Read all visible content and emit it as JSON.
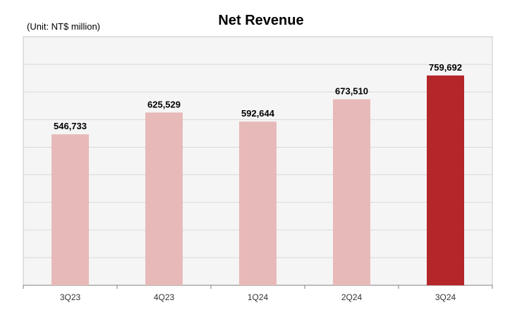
{
  "unit_note": "(Unit: NT$ million)",
  "chart_data": {
    "type": "bar",
    "title": "Net Revenue",
    "xlabel": "",
    "ylabel": "",
    "categories": [
      "3Q23",
      "4Q23",
      "1Q24",
      "2Q24",
      "3Q24"
    ],
    "values": [
      546733,
      625529,
      592644,
      673510,
      759692
    ],
    "value_labels": [
      "546,733",
      "625,529",
      "592,644",
      "673,510",
      "759,692"
    ],
    "ylim": [
      0,
      900000
    ],
    "grid": true,
    "legend": "none",
    "colors": {
      "bar": "#e8b9b9",
      "highlight_bar": "#b5262b",
      "plot_background": "#f5f5f5",
      "gridline": "#d9d9d9",
      "axis": "#7f7f7f"
    },
    "highlight_index": 4
  }
}
